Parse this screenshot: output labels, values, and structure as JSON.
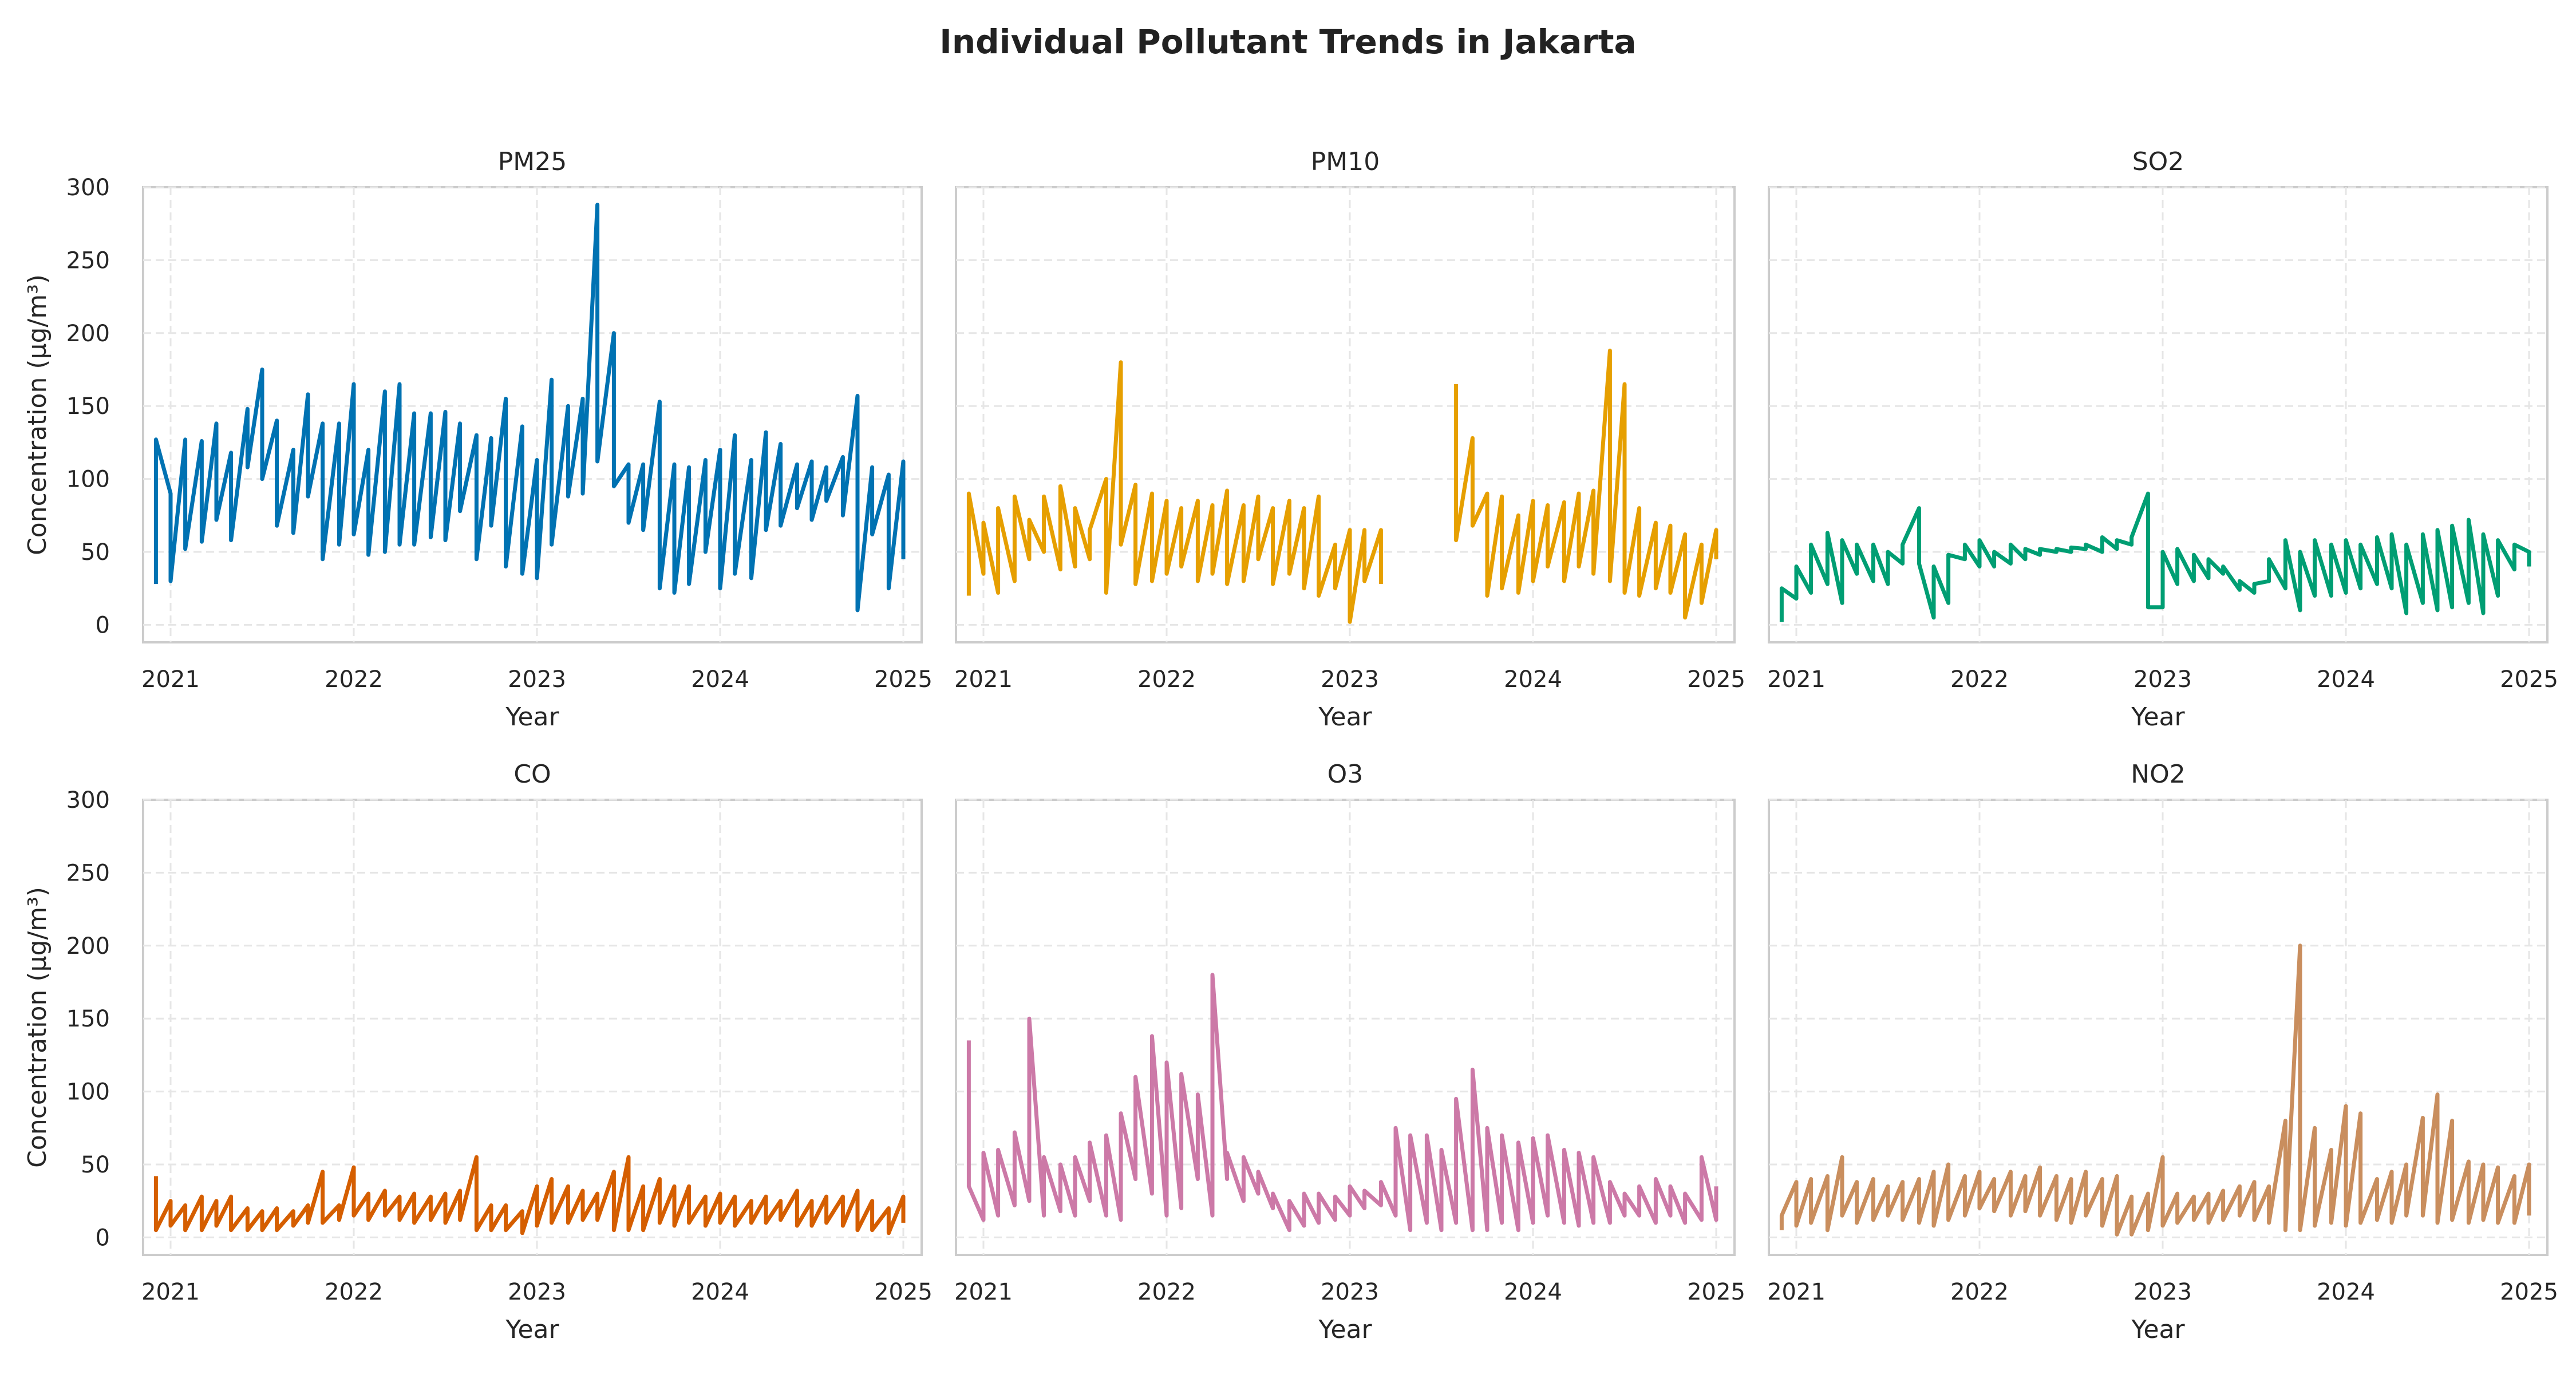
{
  "figure": {
    "title": "Individual Pollutant Trends in Jakarta"
  },
  "chart_data": [
    {
      "type": "line",
      "title": "PM25",
      "color": "#0072B2",
      "xlabel": "Year",
      "ylabel": "Concentration (µg/m³)",
      "xlim": [
        2020.85,
        2025.1
      ],
      "ylim": [
        -12,
        300
      ],
      "xticks": [
        "2021",
        "2022",
        "2023",
        "2024",
        "2025"
      ],
      "yticks": [
        "0",
        "50",
        "100",
        "150",
        "200",
        "250",
        "300"
      ],
      "grid": true,
      "x": [
        2020.92,
        2020.92,
        2021.0,
        2021.0,
        2021.08,
        2021.08,
        2021.17,
        2021.17,
        2021.25,
        2021.25,
        2021.33,
        2021.33,
        2021.42,
        2021.42,
        2021.5,
        2021.5,
        2021.58,
        2021.58,
        2021.67,
        2021.67,
        2021.75,
        2021.75,
        2021.83,
        2021.83,
        2021.92,
        2021.92,
        2022.0,
        2022.0,
        2022.08,
        2022.08,
        2022.17,
        2022.17,
        2022.25,
        2022.25,
        2022.33,
        2022.33,
        2022.42,
        2022.42,
        2022.5,
        2022.5,
        2022.58,
        2022.58,
        2022.67,
        2022.67,
        2022.75,
        2022.75,
        2022.83,
        2022.83,
        2022.92,
        2022.92,
        2023.0,
        2023.0,
        2023.08,
        2023.08,
        2023.17,
        2023.17,
        2023.25,
        2023.25,
        2023.33,
        2023.33,
        2023.42,
        2023.42,
        2023.5,
        2023.5,
        2023.58,
        2023.58,
        2023.67,
        2023.67,
        2023.75,
        2023.75,
        2023.83,
        2023.83,
        2023.92,
        2023.92,
        2024.0,
        2024.0,
        2024.08,
        2024.08,
        2024.17,
        2024.17,
        2024.25,
        2024.25,
        2024.33,
        2024.33,
        2024.42,
        2024.42,
        2024.5,
        2024.5,
        2024.58,
        2024.58,
        2024.67,
        2024.67,
        2024.75,
        2024.75,
        2024.83,
        2024.83,
        2024.92,
        2024.92,
        2025.0,
        2025.0
      ],
      "y": [
        28,
        127,
        90,
        30,
        127,
        52,
        126,
        57,
        138,
        72,
        118,
        58,
        148,
        108,
        175,
        100,
        140,
        68,
        120,
        63,
        158,
        88,
        138,
        45,
        138,
        55,
        165,
        62,
        120,
        48,
        160,
        50,
        165,
        55,
        145,
        55,
        145,
        60,
        146,
        58,
        138,
        78,
        130,
        45,
        128,
        68,
        155,
        40,
        136,
        35,
        113,
        32,
        168,
        55,
        150,
        88,
        155,
        90,
        288,
        112,
        200,
        95,
        110,
        70,
        110,
        65,
        153,
        25,
        110,
        22,
        108,
        28,
        113,
        50,
        120,
        25,
        130,
        35,
        113,
        32,
        132,
        65,
        124,
        68,
        110,
        80,
        112,
        72,
        108,
        85,
        115,
        75,
        157,
        10,
        108,
        62,
        103,
        25,
        112,
        45
      ]
    },
    {
      "type": "line",
      "title": "PM10",
      "color": "#E69F00",
      "xlabel": "Year",
      "ylabel": "",
      "xlim": [
        2020.85,
        2025.1
      ],
      "ylim": [
        -12,
        300
      ],
      "xticks": [
        "2021",
        "2022",
        "2023",
        "2024",
        "2025"
      ],
      "yticks": [],
      "grid": true,
      "x": [
        2020.92,
        2020.92,
        2021.0,
        2021.0,
        2021.08,
        2021.08,
        2021.17,
        2021.17,
        2021.25,
        2021.25,
        2021.33,
        2021.33,
        2021.42,
        2021.42,
        2021.5,
        2021.5,
        2021.58,
        2021.58,
        2021.67,
        2021.67,
        2021.75,
        2021.75,
        2021.83,
        2021.83,
        2021.92,
        2021.92,
        2022.0,
        2022.0,
        2022.08,
        2022.08,
        2022.17,
        2022.17,
        2022.25,
        2022.25,
        2022.33,
        2022.33,
        2022.42,
        2022.42,
        2022.5,
        2022.5,
        2022.58,
        2022.58,
        2022.67,
        2022.67,
        2022.75,
        2022.75,
        2022.83,
        2022.83,
        2022.92,
        2022.92,
        2023.0,
        2023.0,
        2023.08,
        2023.08,
        2023.17,
        2023.17,
        null,
        2023.58,
        2023.58,
        2023.67,
        2023.67,
        2023.75,
        2023.75,
        2023.83,
        2023.83,
        2023.92,
        2023.92,
        2024.0,
        2024.0,
        2024.08,
        2024.08,
        2024.17,
        2024.17,
        2024.25,
        2024.25,
        2024.33,
        2024.33,
        2024.42,
        2024.42,
        2024.5,
        2024.5,
        2024.58,
        2024.58,
        2024.67,
        2024.67,
        2024.75,
        2024.75,
        2024.83,
        2024.83,
        2024.92,
        2024.92,
        2025.0,
        2025.0
      ],
      "y": [
        20,
        90,
        35,
        70,
        22,
        80,
        30,
        88,
        45,
        72,
        50,
        88,
        38,
        95,
        40,
        80,
        45,
        65,
        100,
        22,
        180,
        55,
        96,
        28,
        90,
        30,
        85,
        35,
        80,
        40,
        85,
        30,
        82,
        35,
        92,
        28,
        82,
        30,
        88,
        45,
        80,
        28,
        85,
        35,
        80,
        25,
        88,
        20,
        55,
        25,
        65,
        2,
        65,
        30,
        65,
        28,
        null,
        165,
        58,
        128,
        68,
        90,
        20,
        88,
        25,
        75,
        22,
        85,
        30,
        82,
        40,
        84,
        30,
        90,
        40,
        92,
        35,
        188,
        30,
        165,
        22,
        80,
        20,
        70,
        25,
        68,
        22,
        62,
        5,
        55,
        15,
        65,
        45
      ]
    },
    {
      "type": "line",
      "title": "SO2",
      "color": "#009E73",
      "xlabel": "Year",
      "ylabel": "",
      "xlim": [
        2020.85,
        2025.1
      ],
      "ylim": [
        -12,
        300
      ],
      "xticks": [
        "2021",
        "2022",
        "2023",
        "2024",
        "2025"
      ],
      "yticks": [],
      "grid": true,
      "x": [
        2020.92,
        2020.92,
        2021.0,
        2021.0,
        2021.08,
        2021.08,
        2021.17,
        2021.17,
        2021.25,
        2021.25,
        2021.33,
        2021.33,
        2021.42,
        2021.42,
        2021.5,
        2021.5,
        2021.58,
        2021.58,
        2021.67,
        2021.67,
        2021.75,
        2021.75,
        2021.83,
        2021.83,
        2021.92,
        2021.92,
        2022.0,
        2022.0,
        2022.08,
        2022.08,
        2022.17,
        2022.17,
        2022.25,
        2022.25,
        2022.33,
        2022.33,
        2022.42,
        2022.42,
        2022.5,
        2022.5,
        2022.58,
        2022.58,
        2022.67,
        2022.67,
        2022.75,
        2022.75,
        2022.83,
        2022.83,
        2022.92,
        2022.92,
        2023.0,
        2023.0,
        2023.08,
        2023.08,
        2023.17,
        2023.17,
        2023.25,
        2023.25,
        2023.33,
        2023.33,
        2023.42,
        2023.42,
        2023.5,
        2023.5,
        2023.58,
        2023.58,
        2023.67,
        2023.67,
        2023.75,
        2023.75,
        2023.83,
        2023.83,
        2023.92,
        2023.92,
        2024.0,
        2024.0,
        2024.08,
        2024.08,
        2024.17,
        2024.17,
        2024.25,
        2024.25,
        2024.33,
        2024.33,
        2024.42,
        2024.42,
        2024.5,
        2024.5,
        2024.58,
        2024.58,
        2024.67,
        2024.67,
        2024.75,
        2024.75,
        2024.83,
        2024.83,
        2024.92,
        2024.92,
        2025.0,
        2025.0
      ],
      "y": [
        2,
        25,
        18,
        40,
        22,
        55,
        28,
        63,
        15,
        58,
        35,
        55,
        30,
        55,
        28,
        50,
        42,
        55,
        80,
        42,
        5,
        40,
        15,
        48,
        45,
        55,
        40,
        58,
        40,
        50,
        42,
        55,
        45,
        52,
        48,
        52,
        50,
        52,
        50,
        53,
        52,
        55,
        50,
        60,
        52,
        58,
        55,
        60,
        90,
        12,
        12,
        50,
        28,
        52,
        30,
        48,
        32,
        45,
        35,
        40,
        24,
        30,
        22,
        28,
        30,
        45,
        25,
        58,
        10,
        50,
        20,
        58,
        20,
        55,
        22,
        58,
        25,
        55,
        28,
        60,
        25,
        62,
        8,
        55,
        15,
        62,
        10,
        65,
        12,
        68,
        15,
        72,
        8,
        62,
        20,
        58,
        38,
        55,
        50,
        40
      ]
    },
    {
      "type": "line",
      "title": "CO",
      "color": "#D55E00",
      "xlabel": "Year",
      "ylabel": "Concentration (µg/m³)",
      "xlim": [
        2020.85,
        2025.1
      ],
      "ylim": [
        -12,
        300
      ],
      "xticks": [
        "2021",
        "2022",
        "2023",
        "2024",
        "2025"
      ],
      "yticks": [
        "0",
        "50",
        "100",
        "150",
        "200",
        "250",
        "300"
      ],
      "grid": true,
      "x": [
        2020.92,
        2020.92,
        2021.0,
        2021.0,
        2021.08,
        2021.08,
        2021.17,
        2021.17,
        2021.25,
        2021.25,
        2021.33,
        2021.33,
        2021.42,
        2021.42,
        2021.5,
        2021.5,
        2021.58,
        2021.58,
        2021.67,
        2021.67,
        2021.75,
        2021.75,
        2021.83,
        2021.83,
        2021.92,
        2021.92,
        2022.0,
        2022.0,
        2022.08,
        2022.08,
        2022.17,
        2022.17,
        2022.25,
        2022.25,
        2022.33,
        2022.33,
        2022.42,
        2022.42,
        2022.5,
        2022.5,
        2022.58,
        2022.58,
        2022.67,
        2022.67,
        2022.75,
        2022.75,
        2022.83,
        2022.83,
        2022.92,
        2022.92,
        2023.0,
        2023.0,
        2023.08,
        2023.08,
        2023.17,
        2023.17,
        2023.25,
        2023.25,
        2023.33,
        2023.33,
        2023.42,
        2023.42,
        2023.5,
        2023.5,
        2023.58,
        2023.58,
        2023.67,
        2023.67,
        2023.75,
        2023.75,
        2023.83,
        2023.83,
        2023.92,
        2023.92,
        2024.0,
        2024.0,
        2024.08,
        2024.08,
        2024.17,
        2024.17,
        2024.25,
        2024.25,
        2024.33,
        2024.33,
        2024.42,
        2024.42,
        2024.5,
        2024.5,
        2024.58,
        2024.58,
        2024.67,
        2024.67,
        2024.75,
        2024.75,
        2024.83,
        2024.83,
        2024.92,
        2024.92,
        2025.0,
        2025.0
      ],
      "y": [
        42,
        5,
        25,
        8,
        22,
        5,
        28,
        5,
        25,
        8,
        28,
        5,
        20,
        5,
        18,
        5,
        20,
        5,
        18,
        8,
        22,
        10,
        45,
        10,
        22,
        12,
        48,
        15,
        30,
        12,
        32,
        15,
        28,
        12,
        30,
        10,
        28,
        12,
        30,
        10,
        32,
        12,
        55,
        5,
        22,
        5,
        22,
        5,
        18,
        3,
        35,
        8,
        40,
        10,
        35,
        10,
        32,
        12,
        30,
        12,
        45,
        5,
        55,
        5,
        35,
        5,
        40,
        10,
        35,
        8,
        35,
        10,
        28,
        8,
        30,
        10,
        28,
        8,
        25,
        10,
        28,
        10,
        25,
        12,
        32,
        8,
        25,
        8,
        28,
        10,
        28,
        8,
        32,
        5,
        25,
        5,
        20,
        3,
        28,
        10
      ]
    },
    {
      "type": "line",
      "title": "O3",
      "color": "#CC79A7",
      "xlabel": "Year",
      "ylabel": "",
      "xlim": [
        2020.85,
        2025.1
      ],
      "ylim": [
        -12,
        300
      ],
      "xticks": [
        "2021",
        "2022",
        "2023",
        "2024",
        "2025"
      ],
      "yticks": [],
      "grid": true,
      "x": [
        2020.92,
        2020.92,
        2021.0,
        2021.0,
        2021.08,
        2021.08,
        2021.17,
        2021.17,
        2021.25,
        2021.25,
        2021.33,
        2021.33,
        2021.42,
        2021.42,
        2021.5,
        2021.5,
        2021.58,
        2021.58,
        2021.67,
        2021.67,
        2021.75,
        2021.75,
        2021.83,
        2021.83,
        2021.92,
        2021.92,
        2022.0,
        2022.0,
        2022.08,
        2022.08,
        2022.17,
        2022.17,
        2022.25,
        2022.25,
        2022.33,
        2022.33,
        2022.42,
        2022.42,
        2022.5,
        2022.5,
        2022.58,
        2022.58,
        2022.67,
        2022.67,
        2022.75,
        2022.75,
        2022.83,
        2022.83,
        2022.92,
        2022.92,
        2023.0,
        2023.0,
        2023.08,
        2023.08,
        2023.17,
        2023.17,
        2023.25,
        2023.25,
        2023.33,
        2023.33,
        2023.42,
        2023.42,
        2023.5,
        2023.5,
        2023.58,
        2023.58,
        2023.67,
        2023.67,
        2023.75,
        2023.75,
        2023.83,
        2023.83,
        2023.92,
        2023.92,
        2024.0,
        2024.0,
        2024.08,
        2024.08,
        2024.17,
        2024.17,
        2024.25,
        2024.25,
        2024.33,
        2024.33,
        2024.42,
        2024.42,
        2024.5,
        2024.5,
        2024.58,
        2024.58,
        2024.67,
        2024.67,
        2024.75,
        2024.75,
        2024.83,
        2024.83,
        2024.92,
        2024.92,
        2025.0,
        2025.0
      ],
      "y": [
        135,
        35,
        12,
        58,
        15,
        60,
        22,
        72,
        25,
        150,
        15,
        55,
        18,
        50,
        15,
        55,
        25,
        65,
        15,
        70,
        12,
        85,
        40,
        110,
        30,
        138,
        15,
        120,
        20,
        112,
        40,
        98,
        15,
        180,
        40,
        58,
        25,
        55,
        30,
        45,
        20,
        30,
        5,
        25,
        8,
        30,
        10,
        30,
        12,
        28,
        15,
        35,
        20,
        32,
        22,
        38,
        15,
        75,
        5,
        70,
        10,
        70,
        5,
        60,
        10,
        95,
        5,
        115,
        5,
        75,
        10,
        70,
        5,
        65,
        10,
        68,
        15,
        70,
        10,
        60,
        8,
        58,
        10,
        55,
        10,
        38,
        15,
        30,
        15,
        35,
        10,
        40,
        15,
        35,
        10,
        30,
        12,
        55,
        12,
        35
      ]
    },
    {
      "type": "line",
      "title": "NO2",
      "color": "#C98E5E",
      "xlabel": "Year",
      "ylabel": "",
      "xlim": [
        2020.85,
        2025.1
      ],
      "ylim": [
        -12,
        300
      ],
      "xticks": [
        "2021",
        "2022",
        "2023",
        "2024",
        "2025"
      ],
      "yticks": [],
      "grid": true,
      "x": [
        2020.92,
        2020.92,
        2021.0,
        2021.0,
        2021.08,
        2021.08,
        2021.17,
        2021.17,
        2021.25,
        2021.25,
        2021.33,
        2021.33,
        2021.42,
        2021.42,
        2021.5,
        2021.5,
        2021.58,
        2021.58,
        2021.67,
        2021.67,
        2021.75,
        2021.75,
        2021.83,
        2021.83,
        2021.92,
        2021.92,
        2022.0,
        2022.0,
        2022.08,
        2022.08,
        2022.17,
        2022.17,
        2022.25,
        2022.25,
        2022.33,
        2022.33,
        2022.42,
        2022.42,
        2022.5,
        2022.5,
        2022.58,
        2022.58,
        2022.67,
        2022.67,
        2022.75,
        2022.75,
        2022.83,
        2022.83,
        2022.92,
        2022.92,
        2023.0,
        2023.0,
        2023.08,
        2023.08,
        2023.17,
        2023.17,
        2023.25,
        2023.25,
        2023.33,
        2023.33,
        2023.42,
        2023.42,
        2023.5,
        2023.5,
        2023.58,
        2023.58,
        2023.67,
        2023.67,
        2023.75,
        2023.75,
        2023.83,
        2023.83,
        2023.92,
        2023.92,
        2024.0,
        2024.0,
        2024.08,
        2024.08,
        2024.17,
        2024.17,
        2024.25,
        2024.25,
        2024.33,
        2024.33,
        2024.42,
        2024.42,
        2024.5,
        2024.5,
        2024.58,
        2024.58,
        2024.67,
        2024.67,
        2024.75,
        2024.75,
        2024.83,
        2024.83,
        2024.92,
        2024.92,
        2025.0,
        2025.0
      ],
      "y": [
        5,
        15,
        38,
        8,
        40,
        10,
        42,
        5,
        55,
        15,
        38,
        10,
        40,
        12,
        35,
        15,
        38,
        12,
        40,
        10,
        45,
        8,
        50,
        12,
        42,
        15,
        45,
        20,
        40,
        18,
        45,
        15,
        42,
        18,
        48,
        15,
        42,
        12,
        40,
        10,
        45,
        15,
        40,
        8,
        42,
        2,
        28,
        2,
        30,
        5,
        55,
        8,
        30,
        10,
        28,
        12,
        30,
        10,
        32,
        12,
        35,
        15,
        38,
        12,
        35,
        10,
        80,
        5,
        200,
        5,
        75,
        8,
        60,
        10,
        90,
        8,
        85,
        10,
        40,
        12,
        45,
        10,
        50,
        15,
        82,
        15,
        98,
        10,
        80,
        12,
        52,
        10,
        50,
        12,
        48,
        10,
        42,
        10,
        50,
        15
      ]
    }
  ]
}
